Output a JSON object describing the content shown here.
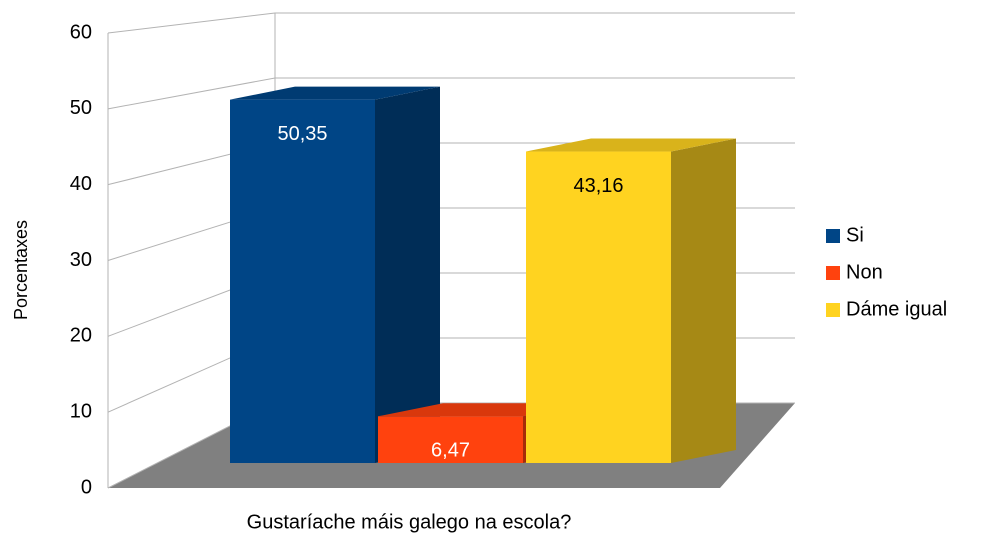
{
  "chart_data": {
    "type": "bar3d",
    "xlabel": "Gustaríache máis galego na escola?",
    "ylabel": "Porcentaxes",
    "ylim": [
      0,
      60
    ],
    "yticks": [
      0,
      10,
      20,
      30,
      40,
      50,
      60
    ],
    "grid": true,
    "legend": "right",
    "series": [
      {
        "name": "Si",
        "color": "#004586",
        "values": [
          50.35
        ],
        "value_labels": [
          "50,35"
        ]
      },
      {
        "name": "Non",
        "color": "#ff420e",
        "values": [
          6.47
        ],
        "value_labels": [
          "6,47"
        ]
      },
      {
        "name": "Dáme igual",
        "color": "#ffd320",
        "values": [
          43.16
        ],
        "value_labels": [
          "43,16"
        ]
      }
    ]
  }
}
